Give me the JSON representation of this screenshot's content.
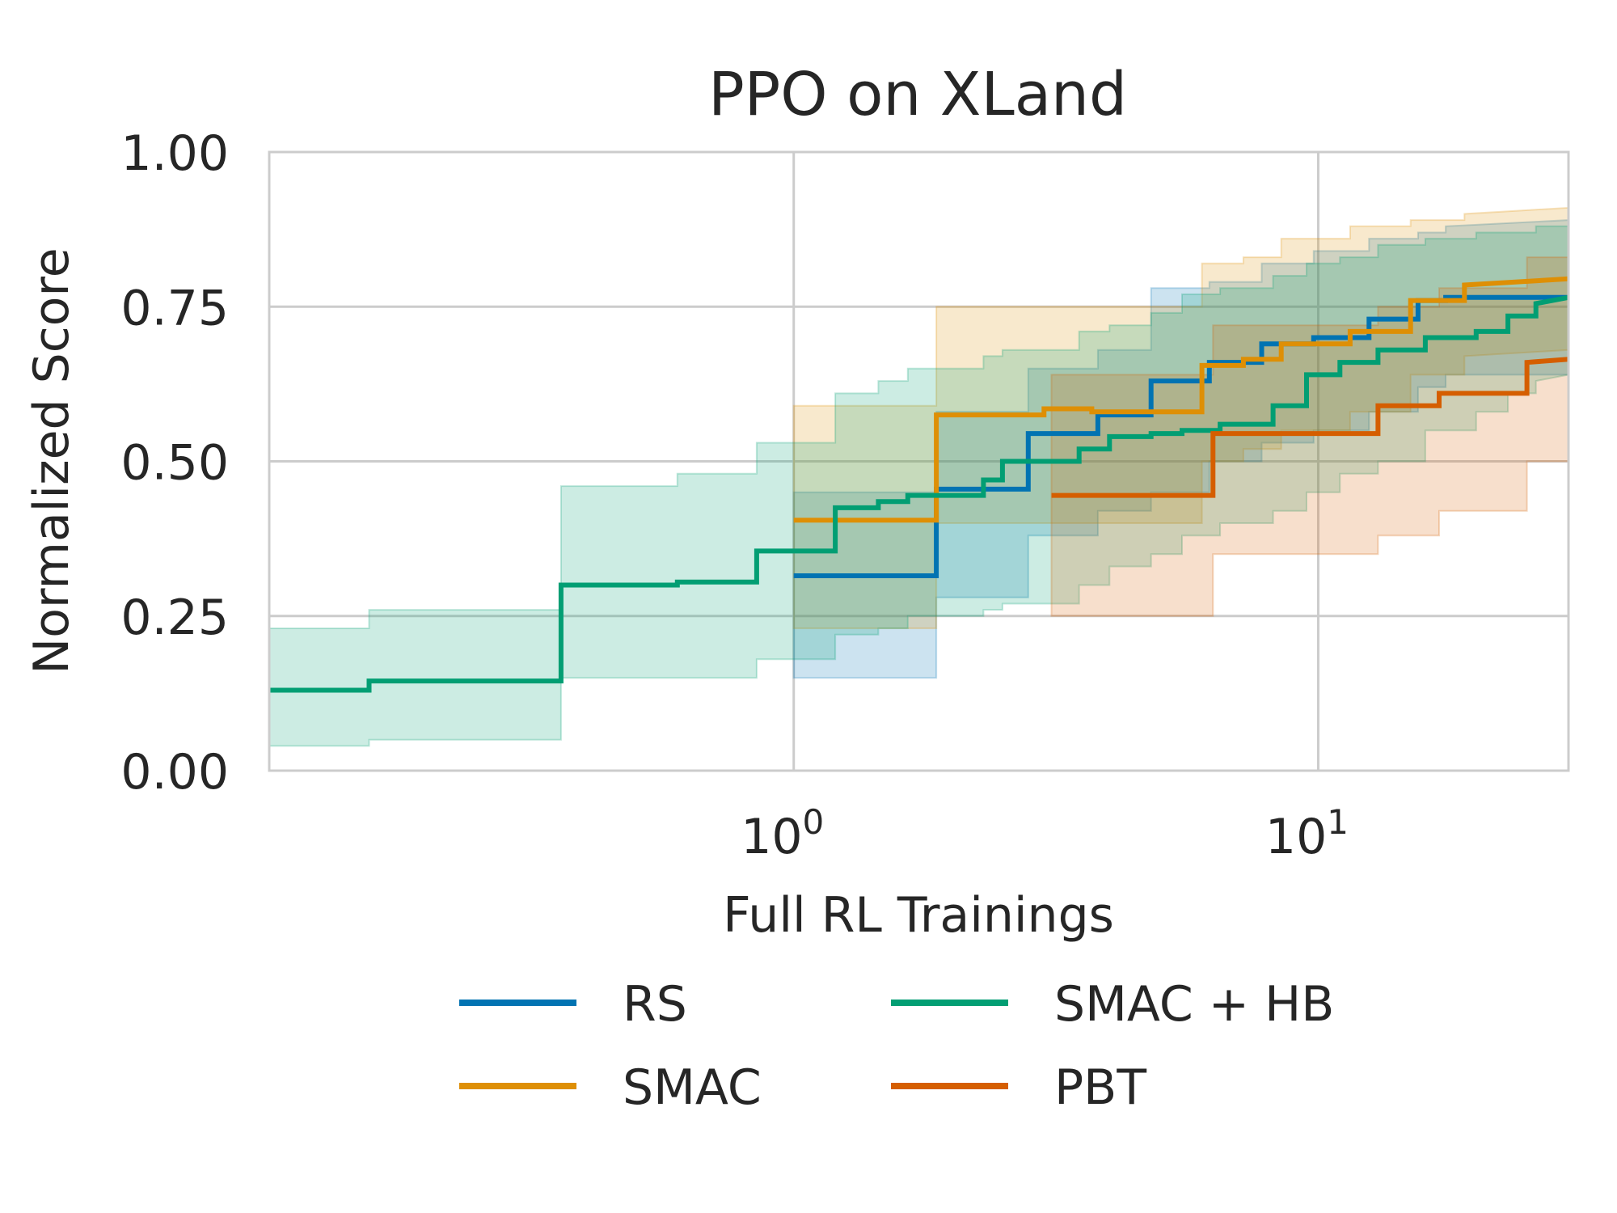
{
  "chart_data": {
    "type": "line",
    "title": "PPO on XLand",
    "xlabel": "Full RL Trainings",
    "ylabel": "Normalized Score",
    "x_scale": "log",
    "xlim": [
      0.1,
      30
    ],
    "ylim": [
      0,
      1
    ],
    "x_ticks": [
      {
        "value": 1,
        "base": "10",
        "exp": "0"
      },
      {
        "value": 10,
        "base": "10",
        "exp": "1"
      }
    ],
    "y_ticks": [
      {
        "value": 0,
        "label": "0.00"
      },
      {
        "value": 0.25,
        "label": "0.25"
      },
      {
        "value": 0.5,
        "label": "0.50"
      },
      {
        "value": 0.75,
        "label": "0.75"
      },
      {
        "value": 1,
        "label": "1.00"
      }
    ],
    "grid": true,
    "legend_position": "bottom-center",
    "series": [
      {
        "name": "RS",
        "color": "#0173b2",
        "x": [
          1.0,
          1.87,
          1.87,
          2.8,
          2.8,
          3.8,
          3.8,
          4.8,
          4.8,
          6.2,
          6.2,
          7.8,
          7.8,
          9.8,
          9.8,
          12.5,
          12.5,
          15.5,
          15.5,
          17.5,
          17.5,
          30
        ],
        "y": [
          0.315,
          0.315,
          0.455,
          0.455,
          0.545,
          0.545,
          0.575,
          0.575,
          0.63,
          0.63,
          0.66,
          0.66,
          0.69,
          0.69,
          0.7,
          0.7,
          0.73,
          0.73,
          0.76,
          0.76,
          0.765,
          0.765
        ],
        "upper": [
          0.45,
          0.45,
          0.58,
          0.58,
          0.65,
          0.65,
          0.68,
          0.68,
          0.78,
          0.78,
          0.79,
          0.79,
          0.82,
          0.82,
          0.84,
          0.84,
          0.86,
          0.86,
          0.87,
          0.87,
          0.88,
          0.89
        ],
        "lower": [
          0.15,
          0.15,
          0.28,
          0.28,
          0.38,
          0.38,
          0.42,
          0.42,
          0.45,
          0.45,
          0.5,
          0.5,
          0.53,
          0.53,
          0.55,
          0.55,
          0.58,
          0.58,
          0.62,
          0.62,
          0.64,
          0.64
        ]
      },
      {
        "name": "SMAC",
        "color": "#de8f05",
        "x": [
          1.0,
          1.87,
          1.87,
          3.0,
          3.0,
          3.7,
          3.7,
          6.0,
          6.0,
          7.2,
          7.2,
          8.5,
          8.5,
          11.5,
          11.5,
          15.0,
          15.0,
          19.0,
          19.0,
          30
        ],
        "y": [
          0.405,
          0.405,
          0.575,
          0.575,
          0.585,
          0.585,
          0.58,
          0.58,
          0.655,
          0.655,
          0.665,
          0.665,
          0.69,
          0.69,
          0.71,
          0.71,
          0.76,
          0.76,
          0.785,
          0.795
        ],
        "upper": [
          0.59,
          0.59,
          0.75,
          0.75,
          0.75,
          0.75,
          0.75,
          0.75,
          0.82,
          0.82,
          0.83,
          0.83,
          0.86,
          0.86,
          0.88,
          0.88,
          0.89,
          0.89,
          0.9,
          0.91
        ],
        "lower": [
          0.23,
          0.23,
          0.4,
          0.4,
          0.4,
          0.4,
          0.4,
          0.4,
          0.5,
          0.5,
          0.52,
          0.52,
          0.55,
          0.55,
          0.58,
          0.58,
          0.64,
          0.64,
          0.67,
          0.68
        ]
      },
      {
        "name": "SMAC + HB",
        "color": "#029e73",
        "x": [
          0.1,
          0.155,
          0.155,
          0.36,
          0.36,
          0.6,
          0.6,
          0.85,
          0.85,
          1.2,
          1.2,
          1.45,
          1.45,
          1.65,
          1.65,
          2.3,
          2.3,
          2.5,
          2.5,
          3.5,
          3.5,
          4.0,
          4.0,
          4.8,
          4.8,
          5.5,
          5.5,
          6.5,
          6.5,
          8.2,
          8.2,
          9.5,
          9.5,
          11.0,
          11.0,
          13.0,
          13.0,
          16.0,
          16.0,
          20.0,
          20.0,
          23.0,
          23.0,
          26.0,
          26.0,
          30
        ],
        "y": [
          0.13,
          0.13,
          0.145,
          0.145,
          0.3,
          0.3,
          0.305,
          0.305,
          0.355,
          0.355,
          0.425,
          0.425,
          0.435,
          0.435,
          0.445,
          0.445,
          0.47,
          0.47,
          0.5,
          0.5,
          0.52,
          0.52,
          0.54,
          0.54,
          0.545,
          0.545,
          0.55,
          0.55,
          0.56,
          0.56,
          0.59,
          0.59,
          0.64,
          0.64,
          0.66,
          0.66,
          0.68,
          0.68,
          0.7,
          0.7,
          0.71,
          0.71,
          0.735,
          0.735,
          0.755,
          0.765
        ],
        "upper": [
          0.23,
          0.23,
          0.26,
          0.26,
          0.46,
          0.46,
          0.48,
          0.48,
          0.53,
          0.53,
          0.61,
          0.61,
          0.63,
          0.63,
          0.65,
          0.65,
          0.67,
          0.67,
          0.68,
          0.68,
          0.71,
          0.71,
          0.72,
          0.72,
          0.74,
          0.74,
          0.77,
          0.77,
          0.78,
          0.78,
          0.8,
          0.8,
          0.82,
          0.82,
          0.83,
          0.83,
          0.85,
          0.85,
          0.86,
          0.86,
          0.87,
          0.87,
          0.87,
          0.87,
          0.88,
          0.88
        ],
        "lower": [
          0.04,
          0.04,
          0.05,
          0.05,
          0.15,
          0.15,
          0.15,
          0.15,
          0.18,
          0.18,
          0.22,
          0.22,
          0.23,
          0.23,
          0.25,
          0.25,
          0.26,
          0.26,
          0.27,
          0.27,
          0.3,
          0.3,
          0.33,
          0.33,
          0.35,
          0.35,
          0.38,
          0.38,
          0.4,
          0.4,
          0.42,
          0.42,
          0.45,
          0.45,
          0.48,
          0.48,
          0.5,
          0.5,
          0.55,
          0.55,
          0.58,
          0.58,
          0.61,
          0.61,
          0.63,
          0.64
        ]
      },
      {
        "name": "PBT",
        "color": "#d55e00",
        "x": [
          3.1,
          6.3,
          6.3,
          13.0,
          13.0,
          17.0,
          17.0,
          25.0,
          25.0,
          30
        ],
        "y": [
          0.445,
          0.445,
          0.545,
          0.545,
          0.59,
          0.59,
          0.61,
          0.61,
          0.66,
          0.665
        ],
        "upper": [
          0.64,
          0.64,
          0.72,
          0.72,
          0.75,
          0.75,
          0.78,
          0.78,
          0.83,
          0.83
        ],
        "lower": [
          0.25,
          0.25,
          0.35,
          0.35,
          0.38,
          0.38,
          0.42,
          0.42,
          0.5,
          0.5
        ]
      }
    ]
  }
}
